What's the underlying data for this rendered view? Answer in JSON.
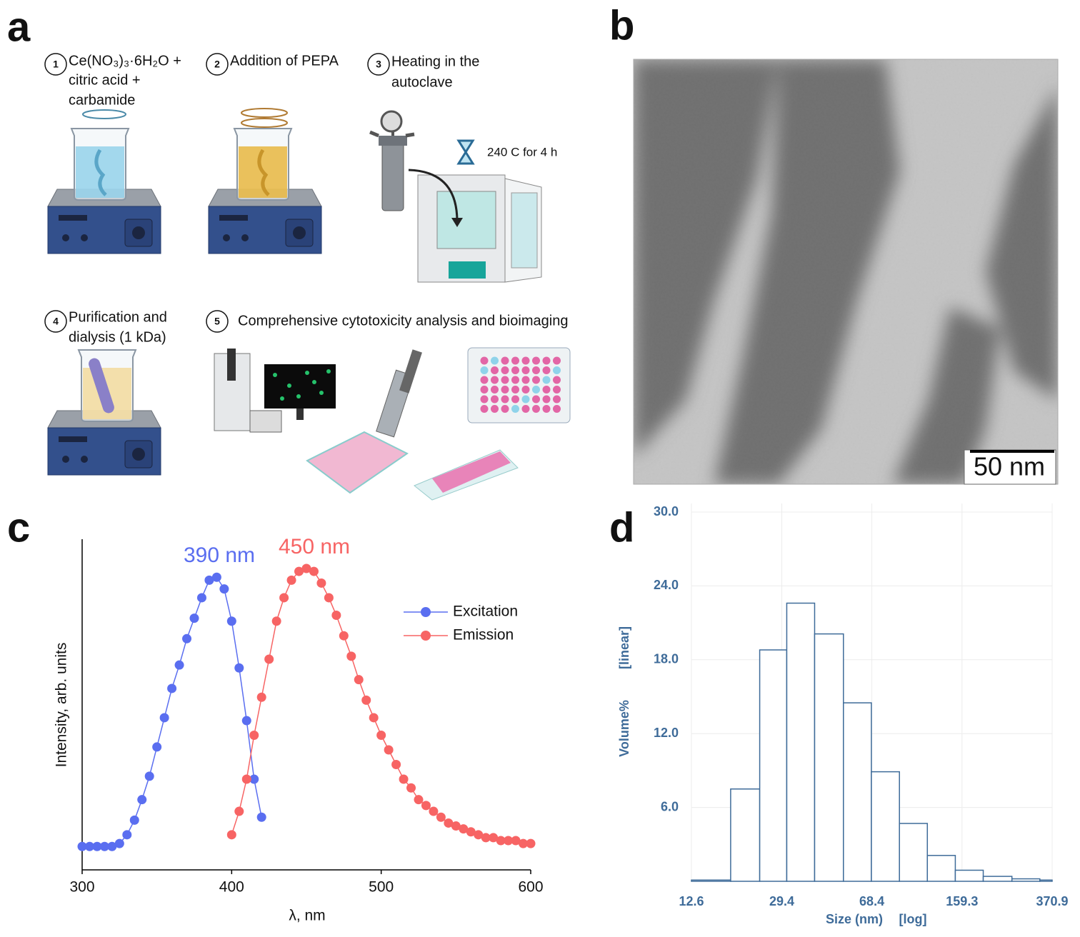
{
  "panel_labels": [
    "a",
    "b",
    "c",
    "d"
  ],
  "diagram": {
    "steps": [
      {
        "number": 1,
        "lines": [
          "Ce(NO₃)₃·6H₂O +",
          "citric acid +",
          "carbamide"
        ]
      },
      {
        "number": 2,
        "lines": [
          "Addition of PEPA"
        ]
      },
      {
        "number": 3,
        "lines": [
          "Heating in the",
          "autoclave"
        ]
      },
      {
        "number": 4,
        "lines": [
          "Purification and",
          "dialysis (1 kDa)"
        ]
      },
      {
        "number": 5,
        "lines": [
          "Comprehensive cytotoxicity analysis and bioimaging"
        ]
      }
    ],
    "heating_note": "240 C for 4 h"
  },
  "micrograph": {
    "scale_bar": "50 nm"
  },
  "chart_data": [
    {
      "type": "scatter",
      "xlabel": "λ, nm",
      "ylabel": "Intensity, arb. units",
      "xlim": [
        300,
        600
      ],
      "xticks": [
        300,
        400,
        500,
        600
      ],
      "ylim": [
        0,
        1.13
      ],
      "legend": "upper right",
      "annotations": [
        {
          "text": "390 nm",
          "color": "#5a6ef0"
        },
        {
          "text": "450 nm",
          "color": "#f76464"
        }
      ],
      "series": [
        {
          "name": "Excitation",
          "color": "#5a6ef0",
          "x": [
            300,
            305,
            310,
            315,
            320,
            325,
            330,
            335,
            340,
            345,
            350,
            355,
            360,
            365,
            370,
            375,
            380,
            385,
            390,
            395,
            400,
            405,
            410,
            415,
            420
          ],
          "values": [
            0.08,
            0.08,
            0.08,
            0.08,
            0.08,
            0.09,
            0.12,
            0.17,
            0.24,
            0.32,
            0.42,
            0.52,
            0.62,
            0.7,
            0.79,
            0.86,
            0.93,
            0.99,
            1.0,
            0.96,
            0.85,
            0.69,
            0.51,
            0.31,
            0.18
          ]
        },
        {
          "name": "Emission",
          "color": "#f76464",
          "x": [
            400,
            405,
            410,
            415,
            420,
            425,
            430,
            435,
            440,
            445,
            450,
            455,
            460,
            465,
            470,
            475,
            480,
            485,
            490,
            495,
            500,
            505,
            510,
            515,
            520,
            525,
            530,
            535,
            540,
            545,
            550,
            555,
            560,
            565,
            570,
            575,
            580,
            585,
            590,
            595,
            600
          ],
          "values": [
            0.12,
            0.2,
            0.31,
            0.46,
            0.59,
            0.72,
            0.85,
            0.93,
            0.99,
            1.02,
            1.03,
            1.02,
            0.98,
            0.93,
            0.87,
            0.8,
            0.73,
            0.65,
            0.58,
            0.52,
            0.46,
            0.41,
            0.36,
            0.31,
            0.28,
            0.24,
            0.22,
            0.2,
            0.18,
            0.16,
            0.15,
            0.14,
            0.13,
            0.12,
            0.11,
            0.11,
            0.1,
            0.1,
            0.1,
            0.09,
            0.09
          ]
        }
      ]
    },
    {
      "type": "histogram",
      "xlabel": "Size (nm)",
      "xlabel_scale": "[log]",
      "ylabel": "Volume%",
      "ylabel_scale": "[linear]",
      "xscale": "log",
      "xlim": [
        12.6,
        370.9
      ],
      "xticks": [
        12.6,
        29.4,
        68.4,
        159.3,
        370.9
      ],
      "ylim": [
        0,
        30
      ],
      "yticks": [
        {
          "value": 6,
          "label": "6.0"
        },
        {
          "value": 12,
          "label": "12.0"
        },
        {
          "value": 18,
          "label": "18.0"
        },
        {
          "value": 24,
          "label": "24.0"
        },
        {
          "value": 30,
          "label": "30.0"
        }
      ],
      "grid": true,
      "color": "#3e6b99",
      "bins": [
        12.6,
        18.2,
        23.9,
        30.8,
        40.0,
        52.4,
        68.1,
        88.6,
        115.1,
        149.6,
        194.4,
        254.4,
        330.5,
        370.9
      ],
      "values": [
        0.1,
        7.5,
        18.8,
        22.6,
        20.1,
        14.5,
        8.9,
        4.7,
        2.1,
        0.9,
        0.4,
        0.2,
        0.1
      ]
    }
  ]
}
